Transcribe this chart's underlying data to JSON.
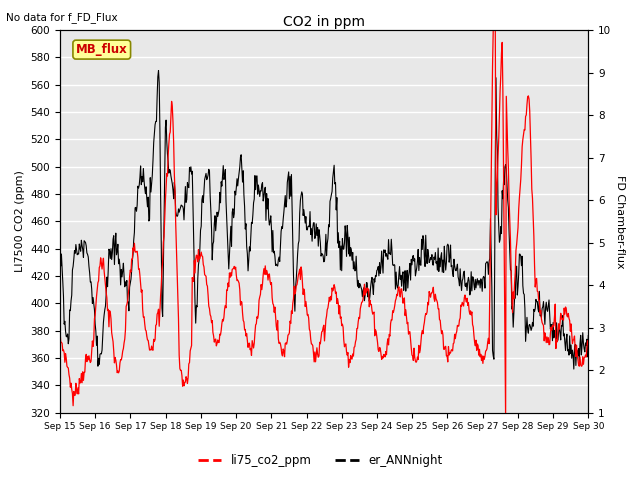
{
  "title": "CO2 in ppm",
  "top_left_text": "No data for f_FD_Flux",
  "ylabel_left": "LI7500 CO2 (ppm)",
  "ylabel_right": "FD Chamber-flux",
  "ylim_left": [
    320,
    600
  ],
  "ylim_right": [
    1.0,
    10.0
  ],
  "yticks_left": [
    320,
    340,
    360,
    380,
    400,
    420,
    440,
    460,
    480,
    500,
    520,
    540,
    560,
    580,
    600
  ],
  "yticks_right": [
    1.0,
    2.0,
    3.0,
    4.0,
    5.0,
    6.0,
    7.0,
    8.0,
    9.0,
    10.0
  ],
  "xtick_labels": [
    "Sep 15",
    "Sep 16",
    "Sep 17",
    "Sep 18",
    "Sep 19",
    "Sep 20",
    "Sep 21",
    "Sep 22",
    "Sep 23",
    "Sep 24",
    "Sep 25",
    "Sep 26",
    "Sep 27",
    "Sep 28",
    "Sep 29",
    "Sep 30"
  ],
  "legend_labels": [
    "li75_co2_ppm",
    "er_ANNnight"
  ],
  "line_colors": [
    "red",
    "black"
  ],
  "mb_flux_label": "MB_flux",
  "mb_flux_color": "#cc0000",
  "mb_flux_bg": "#ffff99",
  "background_color": "#e8e8e8",
  "grid_color": "white",
  "figsize": [
    6.4,
    4.8
  ],
  "dpi": 100
}
